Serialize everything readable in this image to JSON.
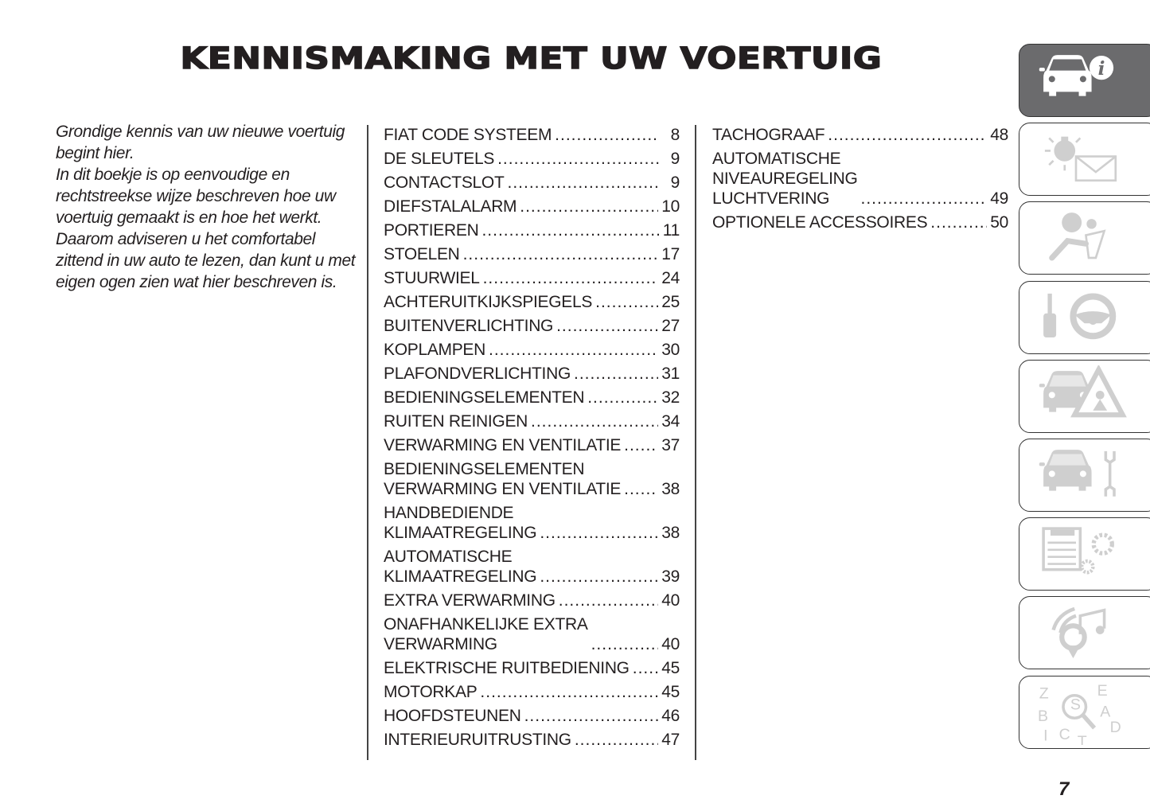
{
  "title": "KENNISMAKING MET UW VOERTUIG",
  "intro": [
    "Grondige kennis van uw nieuwe voertuig begint hier.",
    "In dit boekje is op eenvoudige en rechtstreekse wijze beschreven hoe uw voertuig gemaakt is en hoe het werkt.",
    "Daarom adviseren u het comfortabel zittend in uw auto te lezen, dan kunt u met eigen ogen zien wat hier beschreven is."
  ],
  "toc_col1": [
    {
      "label": "FIAT CODE SYSTEEM",
      "page": "8"
    },
    {
      "label": "DE SLEUTELS",
      "page": "9"
    },
    {
      "label": "CONTACTSLOT",
      "page": "9"
    },
    {
      "label": "DIEFSTALALARM",
      "page": "10"
    },
    {
      "label": "PORTIEREN",
      "page": "11"
    },
    {
      "label": "STOELEN",
      "page": "17"
    },
    {
      "label": "STUURWIEL",
      "page": "24"
    },
    {
      "label": "ACHTERUITKIJKSPIEGELS",
      "page": "25"
    },
    {
      "label": "BUITENVERLICHTING",
      "page": "27"
    },
    {
      "label": "KOPLAMPEN",
      "page": "30"
    },
    {
      "label": "PLAFONDVERLICHTING",
      "page": "31"
    },
    {
      "label": "BEDIENINGSELEMENTEN",
      "page": "32"
    },
    {
      "label": "RUITEN REINIGEN",
      "page": "34"
    },
    {
      "label": "VERWARMING EN VENTILATIE",
      "page": "37"
    },
    {
      "label": "BEDIENINGSELEMENTEN\nVERWARMING EN VENTILATIE",
      "page": "38"
    },
    {
      "label": "HANDBEDIENDE\nKLIMAATREGELING",
      "page": "38"
    },
    {
      "label": "AUTOMATISCHE\nKLIMAATREGELING",
      "page": "39"
    },
    {
      "label": "EXTRA VERWARMING",
      "page": "40"
    },
    {
      "label": "ONAFHANKELIJKE EXTRA\nVERWARMING",
      "page": "40"
    },
    {
      "label": "ELEKTRISCHE RUITBEDIENING",
      "page": "45"
    },
    {
      "label": "MOTORKAP",
      "page": "45"
    },
    {
      "label": "HOOFDSTEUNEN",
      "page": "46"
    },
    {
      "label": "INTERIEURUITRUSTING",
      "page": "47"
    }
  ],
  "toc_col2": [
    {
      "label": "TACHOGRAAF",
      "page": "48"
    },
    {
      "label": "AUTOMATISCHE\nNIVEAUREGELING\nLUCHTVERING",
      "page": "49"
    },
    {
      "label": "OPTIONELE ACCESSOIRES",
      "page": "50"
    }
  ],
  "tabs": [
    {
      "icon": "car-info-icon",
      "active": true
    },
    {
      "icon": "warning-light-message-icon",
      "active": false
    },
    {
      "icon": "airbag-seatbelt-icon",
      "active": false
    },
    {
      "icon": "key-steering-wheel-icon",
      "active": false
    },
    {
      "icon": "car-emergency-triangle-icon",
      "active": false
    },
    {
      "icon": "car-wrench-icon",
      "active": false
    },
    {
      "icon": "specs-gears-icon",
      "active": false
    },
    {
      "icon": "multimedia-music-icon",
      "active": false
    },
    {
      "icon": "alphabetical-index-search-icon",
      "active": false
    }
  ],
  "index_letters": [
    "Z",
    "E",
    "S",
    "A",
    "B",
    "D",
    "I",
    "C",
    "T"
  ],
  "page_number": "7",
  "colors": {
    "active_tab": "#6b6b6d",
    "icon_gray": "#cfcfcf",
    "text": "#231f20"
  }
}
